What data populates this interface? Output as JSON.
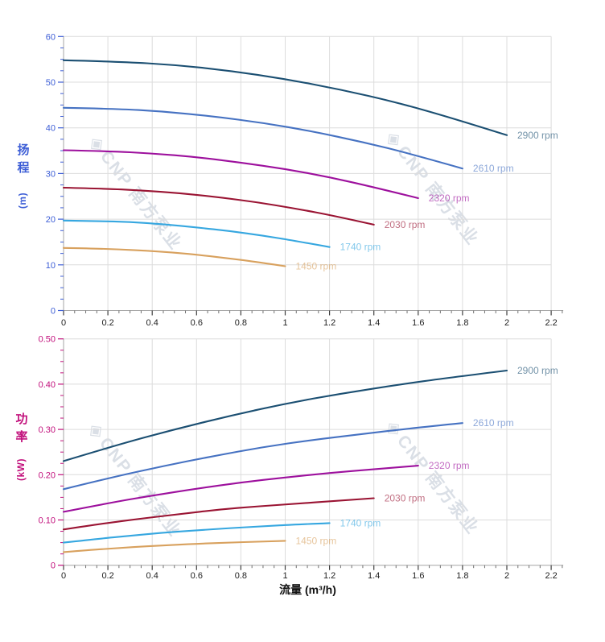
{
  "watermark": {
    "logo_glyph": "◈",
    "text": "CNP 南方泵业"
  },
  "axes": {
    "flow_title": "流量 (m³/h)",
    "head_title_cjk": "扬程",
    "head_title_unit": "(m)",
    "power_title_cjk": "功率",
    "power_title_unit": "(kW)"
  },
  "colors": {
    "grid": "#dcdcdc",
    "axis_line": "#a6a6a6",
    "x_tick_major": "#3f3f3f",
    "x_tick_minor": "#707070",
    "x_tick_text": "#222222",
    "head_axis": "#3d5ed6",
    "power_axis": "#c2107c"
  },
  "chart_data": [
    {
      "id": "head",
      "type": "line",
      "title": "",
      "xlabel": "流量 (m³/h)",
      "ylabel": "扬程 (m)",
      "xlim": [
        0,
        2.2
      ],
      "ylim": [
        0,
        60
      ],
      "grid": true,
      "legend_position": "inline-right-of-curve-end",
      "axis_color": "#3d5ed6",
      "x_minor_step": 0.05,
      "x_minor_end": 2.25,
      "y_minor_step": 2.5,
      "x_ticks": [
        {
          "v": 0,
          "label": "0"
        },
        {
          "v": 0.2,
          "label": "0.2"
        },
        {
          "v": 0.4,
          "label": "0.4"
        },
        {
          "v": 0.6,
          "label": "0.6"
        },
        {
          "v": 0.8,
          "label": "0.8"
        },
        {
          "v": 1,
          "label": "1"
        },
        {
          "v": 1.2,
          "label": "1.2"
        },
        {
          "v": 1.4,
          "label": "1.4"
        },
        {
          "v": 1.6,
          "label": "1.6"
        },
        {
          "v": 1.8,
          "label": "1.8"
        },
        {
          "v": 2,
          "label": "2"
        },
        {
          "v": 2.2,
          "label": "2.2"
        }
      ],
      "y_ticks": [
        {
          "v": 0,
          "label": "0"
        },
        {
          "v": 10,
          "label": "10"
        },
        {
          "v": 20,
          "label": "20"
        },
        {
          "v": 30,
          "label": "30"
        },
        {
          "v": 40,
          "label": "40"
        },
        {
          "v": 50,
          "label": "50"
        },
        {
          "v": 60,
          "label": "60"
        }
      ],
      "series": [
        {
          "name": "2900 rpm",
          "color": "#1b4f72",
          "x": [
            0,
            0.25,
            0.5,
            0.75,
            1,
            1.25,
            1.5,
            1.75,
            2
          ],
          "y": [
            54.8,
            54.5,
            53.8,
            52.5,
            50.7,
            48.4,
            45.6,
            42.2,
            38.4
          ]
        },
        {
          "name": "2610 rpm",
          "color": "#4672c2",
          "x": [
            0,
            0.225,
            0.45,
            0.675,
            0.9,
            1.125,
            1.35,
            1.575,
            1.8
          ],
          "y": [
            44.4,
            44.2,
            43.6,
            42.5,
            41.1,
            39.2,
            36.9,
            34.2,
            31.1
          ]
        },
        {
          "name": "2320 rpm",
          "color": "#9d109d",
          "x": [
            0,
            0.2,
            0.4,
            0.6,
            0.8,
            1,
            1.2,
            1.4,
            1.6
          ],
          "y": [
            35.1,
            34.9,
            34.4,
            33.6,
            32.4,
            31.0,
            29.2,
            27.0,
            24.6
          ]
        },
        {
          "name": "2030 rpm",
          "color": "#9a1433",
          "x": [
            0,
            0.175,
            0.35,
            0.525,
            0.7,
            0.875,
            1.05,
            1.225,
            1.4
          ],
          "y": [
            26.9,
            26.7,
            26.3,
            25.7,
            24.8,
            23.7,
            22.3,
            20.7,
            18.8
          ]
        },
        {
          "name": "1740 rpm",
          "color": "#36a7e0",
          "x": [
            0,
            0.15,
            0.3,
            0.45,
            0.6,
            0.75,
            0.9,
            1.05,
            1.2
          ],
          "y": [
            19.7,
            19.6,
            19.4,
            18.9,
            18.2,
            17.4,
            16.4,
            15.2,
            13.9
          ]
        },
        {
          "name": "1450 rpm",
          "color": "#d8a15e",
          "x": [
            0,
            0.125,
            0.25,
            0.375,
            0.5,
            0.625,
            0.75,
            0.875,
            1
          ],
          "y": [
            13.7,
            13.6,
            13.4,
            13.1,
            12.7,
            12.1,
            11.4,
            10.6,
            9.7
          ]
        }
      ]
    },
    {
      "id": "power",
      "type": "line",
      "title": "",
      "xlabel": "流量 (m³/h)",
      "ylabel": "功率 (kW)",
      "xlim": [
        0,
        2.2
      ],
      "ylim": [
        0,
        0.5
      ],
      "grid": true,
      "legend_position": "inline-right-of-curve-end",
      "axis_color": "#c2107c",
      "x_minor_step": 0.05,
      "x_minor_end": 2.25,
      "y_minor_step": 0.025,
      "x_ticks": [
        {
          "v": 0,
          "label": "0"
        },
        {
          "v": 0.2,
          "label": "0.2"
        },
        {
          "v": 0.4,
          "label": "0.4"
        },
        {
          "v": 0.6,
          "label": "0.6"
        },
        {
          "v": 0.8,
          "label": "0.8"
        },
        {
          "v": 1,
          "label": "1"
        },
        {
          "v": 1.2,
          "label": "1.2"
        },
        {
          "v": 1.4,
          "label": "1.4"
        },
        {
          "v": 1.6,
          "label": "1.6"
        },
        {
          "v": 1.8,
          "label": "1.8"
        },
        {
          "v": 2,
          "label": "2"
        },
        {
          "v": 2.2,
          "label": "2.2"
        }
      ],
      "y_ticks": [
        {
          "v": 0,
          "label": "0"
        },
        {
          "v": 0.1,
          "label": "0.10"
        },
        {
          "v": 0.2,
          "label": "0.20"
        },
        {
          "v": 0.3,
          "label": "0.30"
        },
        {
          "v": 0.4,
          "label": "0.40"
        },
        {
          "v": 0.5,
          "label": "0.50"
        }
      ],
      "series": [
        {
          "name": "2900 rpm",
          "color": "#1b4f72",
          "x": [
            0,
            0.25,
            0.5,
            0.75,
            1,
            1.25,
            1.5,
            1.75,
            2
          ],
          "y": [
            0.23,
            0.267,
            0.3,
            0.33,
            0.357,
            0.379,
            0.398,
            0.415,
            0.43
          ]
        },
        {
          "name": "2610 rpm",
          "color": "#4672c2",
          "x": [
            0,
            0.225,
            0.45,
            0.675,
            0.9,
            1.125,
            1.35,
            1.575,
            1.8
          ],
          "y": [
            0.168,
            0.195,
            0.219,
            0.241,
            0.261,
            0.277,
            0.29,
            0.303,
            0.314
          ]
        },
        {
          "name": "2320 rpm",
          "color": "#9d109d",
          "x": [
            0,
            0.2,
            0.4,
            0.6,
            0.8,
            1,
            1.2,
            1.4,
            1.6
          ],
          "y": [
            0.118,
            0.137,
            0.154,
            0.169,
            0.183,
            0.194,
            0.204,
            0.212,
            0.22
          ]
        },
        {
          "name": "2030 rpm",
          "color": "#9a1433",
          "x": [
            0,
            0.175,
            0.35,
            0.525,
            0.7,
            0.875,
            1.05,
            1.225,
            1.4
          ],
          "y": [
            0.079,
            0.092,
            0.103,
            0.113,
            0.123,
            0.13,
            0.136,
            0.142,
            0.148
          ]
        },
        {
          "name": "1740 rpm",
          "color": "#36a7e0",
          "x": [
            0,
            0.15,
            0.3,
            0.45,
            0.6,
            0.75,
            0.9,
            1.05,
            1.2
          ],
          "y": [
            0.05,
            0.058,
            0.065,
            0.072,
            0.077,
            0.082,
            0.086,
            0.09,
            0.093
          ]
        },
        {
          "name": "1450 rpm",
          "color": "#d8a15e",
          "x": [
            0,
            0.125,
            0.25,
            0.375,
            0.5,
            0.625,
            0.75,
            0.875,
            1
          ],
          "y": [
            0.029,
            0.034,
            0.038,
            0.042,
            0.045,
            0.048,
            0.05,
            0.052,
            0.054
          ]
        }
      ]
    }
  ]
}
